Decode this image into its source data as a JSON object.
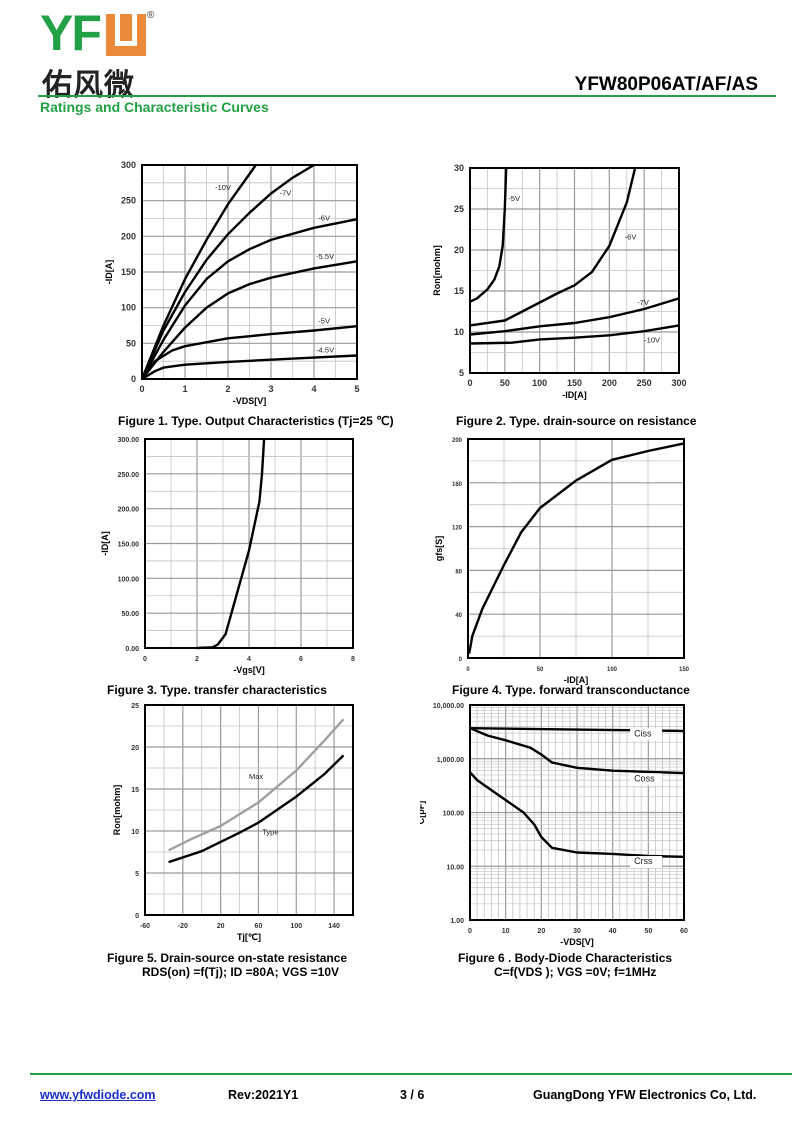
{
  "header": {
    "logo_text": "YFW",
    "logo_text_cn": "佑风微",
    "registered_mark": "®",
    "part_number": "YFW80P06AT/AF/AS",
    "section_title": "Ratings and Characteristic Curves"
  },
  "colors": {
    "brand_green": "#22a046",
    "brand_orange": "#ec8a3a",
    "link_blue": "#1a2fd0"
  },
  "captions": {
    "fig1": "Figure 1. Type. Output Characteristics (Tj=25 ℃)",
    "fig2": "Figure 2. Type. drain-source on resistance",
    "fig3": "Figure 3. Type. transfer characteristics",
    "fig4": "Figure 4. Type. forward transconductance",
    "fig5_line1": "Figure 5. Drain-source on-state resistance",
    "fig5_line2": "RDS(on) =f(Tj); ID =80A; VGS =10V",
    "fig6_line1": "Figure 6 .  Body-Diode Characteristics",
    "fig6_line2": "C=f(VDS ); VGS =0V; f=1MHz"
  },
  "footer": {
    "website": "www.yfwdiode.com",
    "revision": "Rev:2021Y1",
    "page": "3 / 6",
    "company": "GuangDong YFW Electronics Co, Ltd."
  },
  "chart_data": [
    {
      "type": "line",
      "id": "fig1",
      "title": "Figure 1. Type. Output Characteristics (Tj=25 ℃)",
      "xlabel": "-VDS[V]",
      "ylabel": "-ID[A]",
      "xlim": [
        0,
        5
      ],
      "ylim": [
        0,
        300
      ],
      "xticks": [
        0,
        1,
        2,
        3,
        4,
        5
      ],
      "xtick_labels": [
        "0",
        "1",
        "2",
        "3",
        "4",
        "5"
      ],
      "yticks": [
        0,
        50,
        100,
        150,
        200,
        250,
        300
      ],
      "ytick_labels": [
        "0",
        "50",
        "100",
        "150",
        "200",
        "250",
        "300"
      ],
      "grid": true,
      "grid_x_step": 0.5,
      "grid_y_step": 25,
      "series": [
        {
          "name": "-10V",
          "x": [
            0,
            0.5,
            1,
            1.5,
            2,
            2.65
          ],
          "y": [
            0,
            75,
            140,
            195,
            245,
            300
          ]
        },
        {
          "name": "-7V",
          "x": [
            0,
            0.5,
            1,
            1.5,
            2,
            2.5,
            3,
            3.5,
            4
          ],
          "y": [
            0,
            68,
            122,
            167,
            203,
            233,
            260,
            282,
            300
          ]
        },
        {
          "name": "-6V",
          "x": [
            0,
            0.5,
            1,
            1.5,
            2,
            2.5,
            3,
            4,
            5
          ],
          "y": [
            0,
            55,
            103,
            140,
            165,
            182,
            195,
            212,
            224
          ]
        },
        {
          "name": "-5.5V",
          "x": [
            0,
            0.5,
            1,
            1.5,
            2,
            2.5,
            3,
            4,
            5
          ],
          "y": [
            0,
            38,
            72,
            100,
            120,
            133,
            142,
            155,
            165
          ]
        },
        {
          "name": "-5V",
          "x": [
            0,
            0.3,
            0.7,
            1,
            2,
            3,
            4,
            5
          ],
          "y": [
            0,
            25,
            40,
            46,
            57,
            63,
            68,
            74
          ]
        },
        {
          "name": "-4.5V",
          "x": [
            0,
            0.3,
            0.5,
            1,
            2,
            3,
            4,
            5
          ],
          "y": [
            0,
            11,
            16,
            20,
            24,
            27,
            30,
            33
          ]
        }
      ]
    },
    {
      "type": "line",
      "id": "fig2",
      "title": "Figure 2. Type. drain-source on resistance",
      "xlabel": "-ID[A]",
      "ylabel": "Ron[mohm]",
      "xlim": [
        0,
        300
      ],
      "ylim": [
        5,
        30
      ],
      "xticks": [
        0,
        50,
        100,
        150,
        200,
        250,
        300
      ],
      "xtick_labels": [
        "0",
        "50",
        "100",
        "150",
        "200",
        "250",
        "300"
      ],
      "yticks": [
        5,
        10,
        15,
        20,
        25,
        30
      ],
      "ytick_labels": [
        "5",
        "10",
        "15",
        "20",
        "25",
        "30"
      ],
      "grid": true,
      "grid_x_step": 25,
      "grid_y_step": 2.5,
      "series": [
        {
          "name": "-5V",
          "x": [
            0,
            10,
            25,
            35,
            42,
            47,
            50,
            52
          ],
          "y": [
            13.7,
            14.1,
            15.2,
            16.4,
            18,
            20.5,
            25,
            30
          ]
        },
        {
          "name": "-6V",
          "x": [
            0,
            50,
            75,
            100,
            125,
            150,
            175,
            200,
            225,
            237
          ],
          "y": [
            10.8,
            11.4,
            12.5,
            13.6,
            14.7,
            15.7,
            17.3,
            20.5,
            25.8,
            30
          ]
        },
        {
          "name": "-7V",
          "x": [
            0,
            50,
            100,
            150,
            200,
            250,
            300
          ],
          "y": [
            9.7,
            10.1,
            10.7,
            11.1,
            11.8,
            12.8,
            14.1
          ]
        },
        {
          "name": "-10V",
          "x": [
            0,
            60,
            100,
            150,
            200,
            250,
            300
          ],
          "y": [
            8.6,
            8.7,
            9.1,
            9.3,
            9.6,
            10.1,
            10.8
          ]
        }
      ]
    },
    {
      "type": "line",
      "id": "fig3",
      "title": "Figure 3. Type. transfer characteristics",
      "xlabel": "-Vgs[V]",
      "ylabel": "-ID[A]",
      "xlim": [
        0,
        8
      ],
      "ylim": [
        0,
        300
      ],
      "xticks": [
        0,
        2,
        4,
        6,
        8
      ],
      "xtick_labels": [
        "0",
        "2",
        "4",
        "6",
        "8"
      ],
      "yticks": [
        0,
        50,
        100,
        150,
        200,
        250,
        300
      ],
      "ytick_labels": [
        "0.00",
        "50.00",
        "100.00",
        "150.00",
        "200.00",
        "250.00",
        "300.00"
      ],
      "grid": true,
      "grid_x_step": 1,
      "grid_y_step": 25,
      "series": [
        {
          "name": "ID",
          "x": [
            2,
            2.6,
            2.8,
            3.1,
            3.4,
            3.7,
            4,
            4.2,
            4.4,
            4.5,
            4.58
          ],
          "y": [
            0,
            1,
            5,
            20,
            60,
            100,
            140,
            175,
            210,
            250,
            300
          ]
        }
      ]
    },
    {
      "type": "line",
      "id": "fig4",
      "title": "Figure 4. Type. forward transconductance",
      "xlabel": "-ID[A]",
      "ylabel": "gfs[S]",
      "xlim": [
        0,
        150
      ],
      "ylim": [
        0,
        200
      ],
      "xticks": [
        0,
        50,
        100,
        150
      ],
      "xtick_labels": [
        "0",
        "50",
        "100",
        "150"
      ],
      "yticks": [
        0,
        40,
        80,
        120,
        160,
        200
      ],
      "ytick_labels": [
        "0",
        "40",
        "80",
        "120",
        "160",
        "200"
      ],
      "grid": true,
      "grid_x_step": 25,
      "grid_y_step": 20,
      "series": [
        {
          "name": "gfs",
          "x": [
            0.5,
            1,
            3,
            10,
            25,
            37,
            50,
            75,
            100,
            125,
            150
          ],
          "y": [
            5,
            5,
            20,
            45,
            85,
            115,
            137,
            162,
            181,
            189,
            196
          ]
        }
      ]
    },
    {
      "type": "line",
      "id": "fig5",
      "title": "Figure 5. Drain-source on-state resistance RDS(on) =f(Tj); ID =80A; VGS =10V",
      "xlabel": "Tj[℃]",
      "ylabel": "Ron[mohm]",
      "xlim": [
        -60,
        160
      ],
      "ylim": [
        0,
        25
      ],
      "xticks": [
        -60,
        -20,
        20,
        60,
        100,
        140
      ],
      "xtick_labels": [
        "-60",
        "-20",
        "20",
        "60",
        "100",
        "140"
      ],
      "yticks": [
        0,
        5,
        10,
        15,
        20,
        25
      ],
      "ytick_labels": [
        "0",
        "5",
        "10",
        "15",
        "20",
        "25"
      ],
      "grid": true,
      "grid_x_step": 20,
      "grid_y_step": 2.5,
      "series": [
        {
          "name": "Max",
          "color": "#a0a0a0",
          "x": [
            -35,
            -10,
            20,
            60,
            100,
            130,
            150
          ],
          "y": [
            7.7,
            9.1,
            10.6,
            13.4,
            17.2,
            20.8,
            23.3
          ]
        },
        {
          "name": "Type",
          "color": "#000000",
          "x": [
            -35,
            0,
            40,
            60,
            100,
            130,
            150
          ],
          "y": [
            6.3,
            7.6,
            9.8,
            11,
            14.1,
            16.8,
            19
          ]
        }
      ]
    },
    {
      "type": "line",
      "id": "fig6",
      "title": "Figure 6 . Body-Diode Characteristics C=f(VDS ); VGS =0V; f=1MHz",
      "xlabel": "-VDS[V]",
      "ylabel": "C[pF]",
      "yscale": "log",
      "xlim": [
        0,
        60
      ],
      "ylim": [
        1,
        10000
      ],
      "xticks": [
        0,
        10,
        20,
        30,
        40,
        50,
        60
      ],
      "xtick_labels": [
        "0",
        "10",
        "20",
        "30",
        "40",
        "50",
        "60"
      ],
      "yticks": [
        1,
        10,
        100,
        1000,
        10000
      ],
      "ytick_labels": [
        "1.00",
        "10.00",
        "100.00",
        "1,000.00",
        "10,000.00"
      ],
      "grid": true,
      "grid_x_step": 2,
      "series": [
        {
          "name": "Ciss",
          "x": [
            0,
            60
          ],
          "y": [
            3700,
            3300
          ]
        },
        {
          "name": "Coss",
          "x": [
            0,
            5,
            10,
            17,
            20,
            23,
            30,
            40,
            60
          ],
          "y": [
            3700,
            2700,
            2200,
            1600,
            1200,
            850,
            680,
            600,
            540
          ]
        },
        {
          "name": "Crss",
          "x": [
            0,
            2,
            5,
            10,
            15,
            18,
            20,
            23,
            30,
            40,
            50,
            60
          ],
          "y": [
            560,
            400,
            290,
            170,
            100,
            60,
            35,
            22,
            18,
            17,
            15.5,
            15
          ]
        }
      ]
    }
  ]
}
